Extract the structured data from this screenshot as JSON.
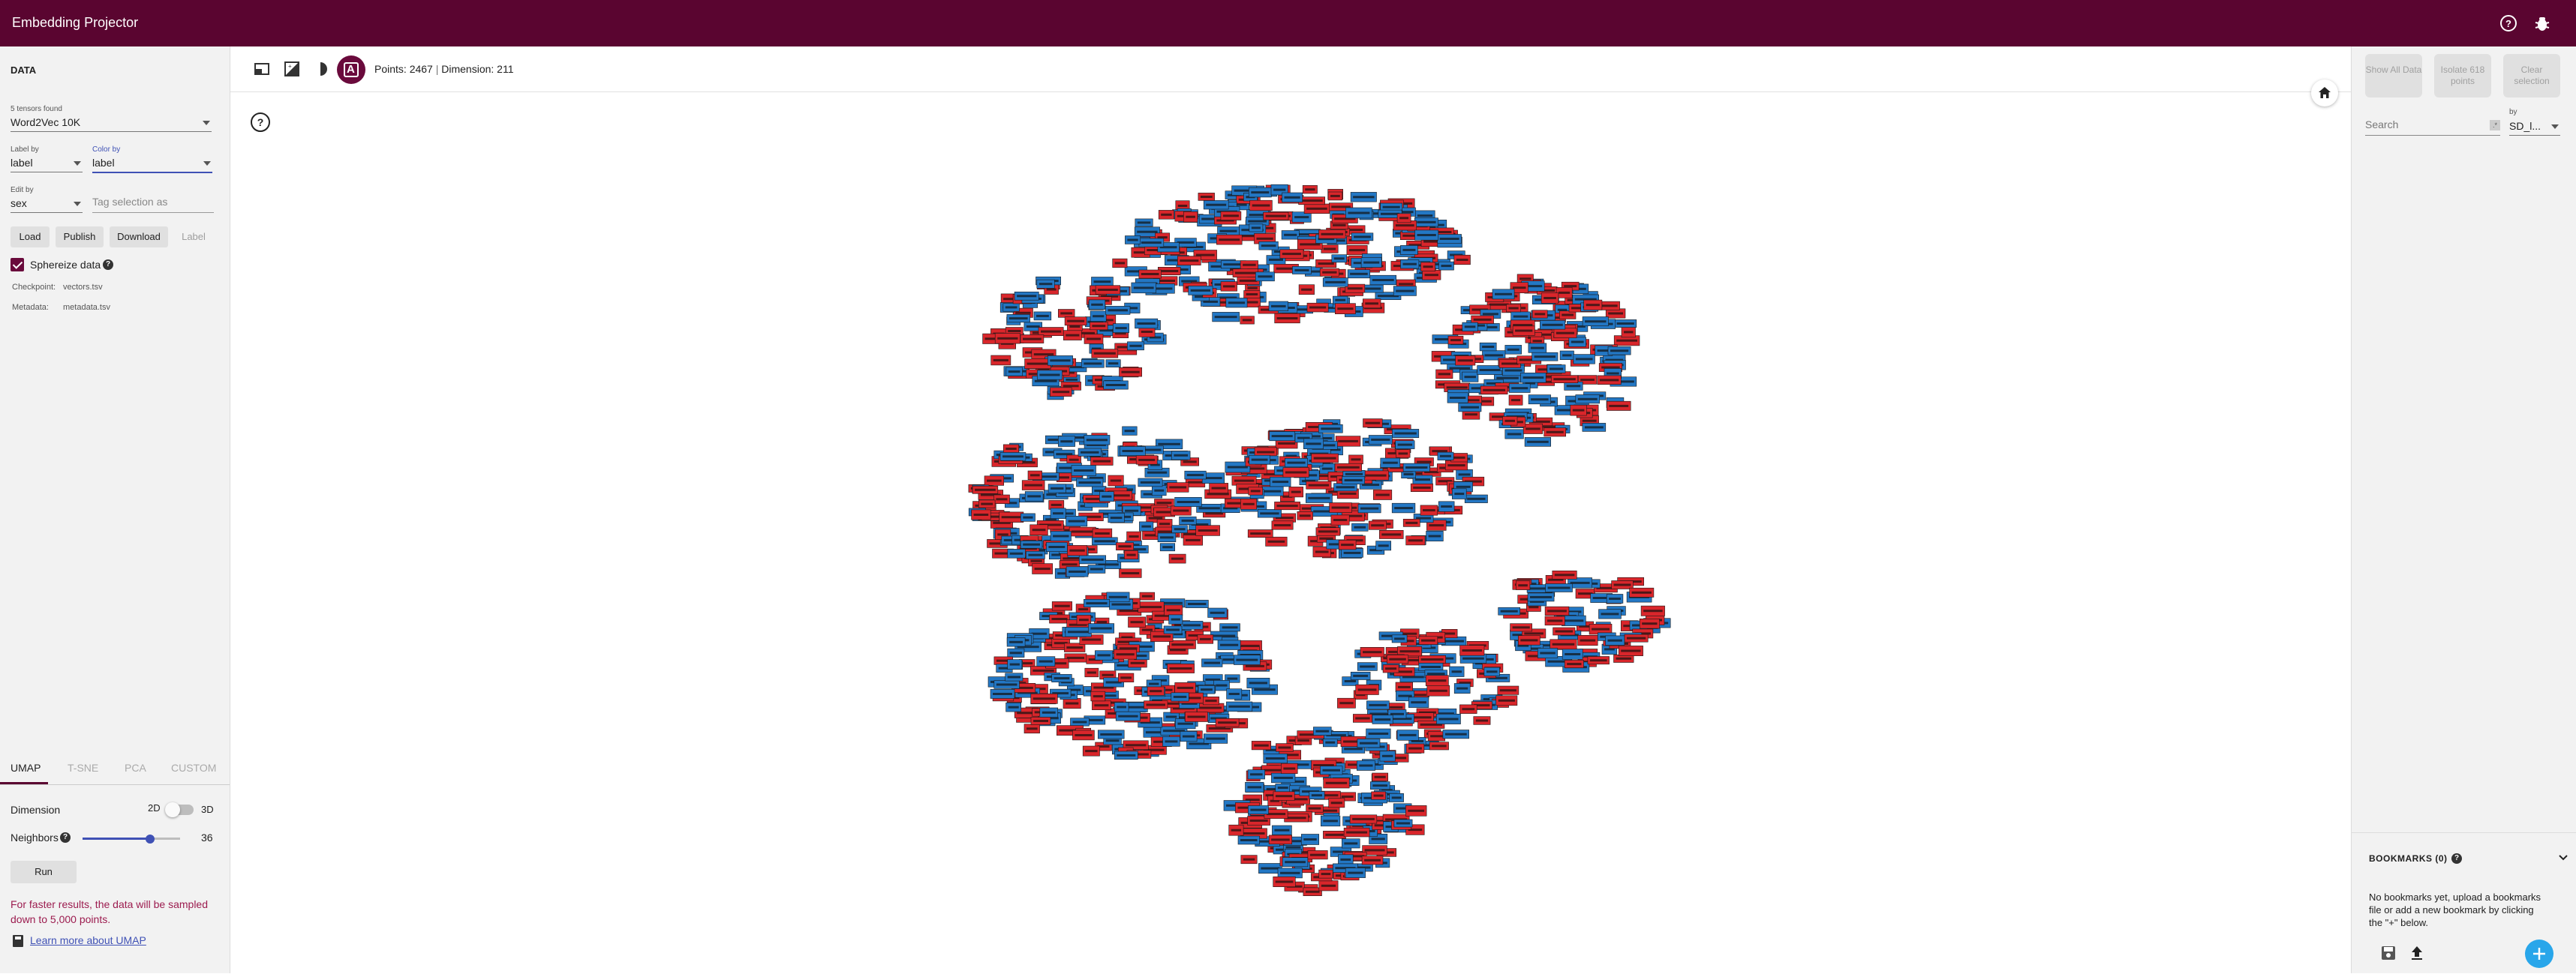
{
  "app": {
    "title": "Embedding Projector"
  },
  "left_panel": {
    "section_title": "DATA",
    "tensors_found": "5 tensors found",
    "tensor_selected": "Word2Vec 10K",
    "label_by": {
      "label": "Label by",
      "value": "label"
    },
    "color_by": {
      "label": "Color by",
      "value": "label"
    },
    "edit_by": {
      "label": "Edit by",
      "value": "sex"
    },
    "tag_placeholder": "Tag selection as",
    "buttons": {
      "load": "Load",
      "publish": "Publish",
      "download": "Download",
      "label": "Label"
    },
    "sphereize": "Sphereize data",
    "checkpoint_label": "Checkpoint:",
    "checkpoint_value": "vectors.tsv",
    "metadata_label": "Metadata:",
    "metadata_value": "metadata.tsv",
    "tabs": [
      "UMAP",
      "T-SNE",
      "PCA",
      "CUSTOM"
    ],
    "dimension_label": "Dimension",
    "dim_2d": "2D",
    "dim_3d": "3D",
    "neighbors_label": "Neighbors",
    "neighbors_value": "36",
    "neighbors_fraction": 0.69,
    "run": "Run",
    "warning": "For faster results, the data will be sampled down to 5,000 points.",
    "learn_more": "Learn more about UMAP"
  },
  "toolbar": {
    "label_mode": "A",
    "points": "Points: 2467",
    "dimension": "Dimension: 211",
    "separator": "|"
  },
  "right_panel": {
    "show_all": "Show All Data",
    "isolate": "Isolate 618 points",
    "clear": "Clear selection",
    "search_placeholder": "Search",
    "by_label": "by",
    "by_value": "SD_l..."
  },
  "bookmarks": {
    "title": "BOOKMARKS (0)",
    "empty_text": "No bookmarks yet, upload a bookmarks file or add a new bookmark by clicking the \"+\" below."
  },
  "icons": {
    "help": "help-circle-icon",
    "bug": "bug-icon",
    "selection": "select-box-icon",
    "night": "night-mode-icon",
    "contrast": "contrast-icon",
    "home": "home-icon",
    "save": "save-icon",
    "upload": "upload-icon",
    "add": "add-icon",
    "expand": "chevron-down-icon"
  },
  "colors": {
    "header": "#5a0530",
    "accent": "#6a0a3c",
    "label_red": "#d9262b",
    "label_blue": "#2377c4"
  }
}
